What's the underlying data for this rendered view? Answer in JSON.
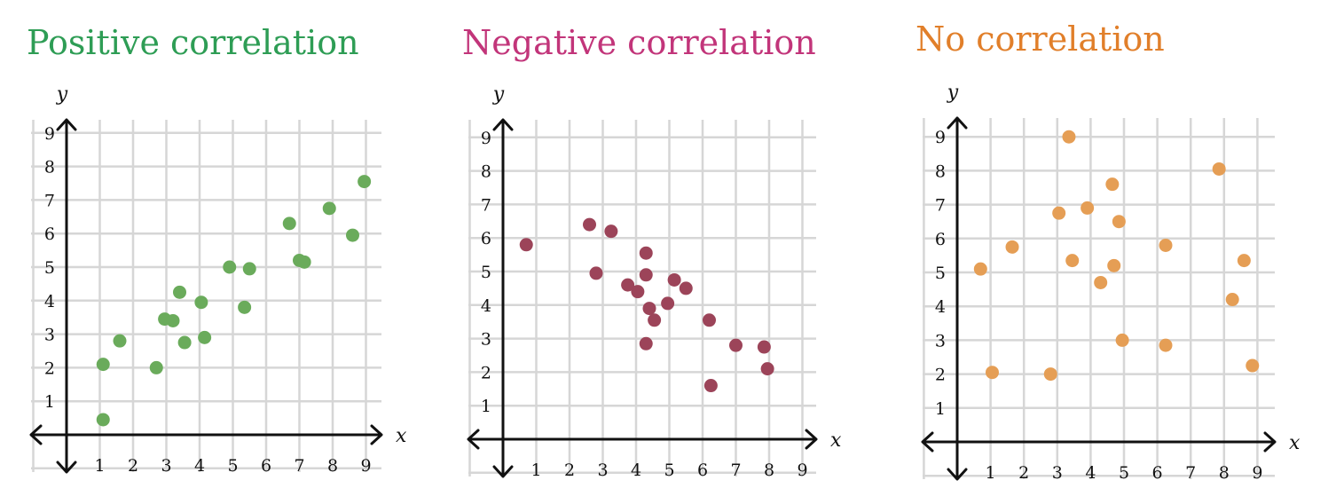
{
  "chart_data": [
    {
      "type": "scatter",
      "title": "Positive correlation",
      "title_color": "#2e9d55",
      "point_color": "#6aab5b",
      "xlabel": "x",
      "ylabel": "y",
      "xlim": [
        0,
        9
      ],
      "ylim": [
        0,
        9
      ],
      "xticks": [
        "1",
        "2",
        "3",
        "4",
        "5",
        "6",
        "7",
        "8",
        "9"
      ],
      "yticks": [
        "1",
        "2",
        "3",
        "4",
        "5",
        "6",
        "7",
        "8",
        "9"
      ],
      "grid": true,
      "points": [
        {
          "x": 1.1,
          "y": 0.45
        },
        {
          "x": 1.1,
          "y": 2.1
        },
        {
          "x": 1.6,
          "y": 2.8
        },
        {
          "x": 2.7,
          "y": 2.0
        },
        {
          "x": 2.95,
          "y": 3.45
        },
        {
          "x": 3.2,
          "y": 3.4
        },
        {
          "x": 3.4,
          "y": 4.25
        },
        {
          "x": 3.55,
          "y": 2.75
        },
        {
          "x": 4.05,
          "y": 3.95
        },
        {
          "x": 4.15,
          "y": 2.9
        },
        {
          "x": 4.9,
          "y": 5.0
        },
        {
          "x": 5.35,
          "y": 3.8
        },
        {
          "x": 5.5,
          "y": 4.95
        },
        {
          "x": 6.7,
          "y": 6.3
        },
        {
          "x": 7.0,
          "y": 5.2
        },
        {
          "x": 7.15,
          "y": 5.15
        },
        {
          "x": 7.9,
          "y": 6.75
        },
        {
          "x": 8.6,
          "y": 5.95
        },
        {
          "x": 8.95,
          "y": 7.55
        }
      ]
    },
    {
      "type": "scatter",
      "title": "Negative correlation",
      "title_color": "#c2357a",
      "point_color": "#9c4459",
      "xlabel": "x",
      "ylabel": "y",
      "xlim": [
        0,
        9
      ],
      "ylim": [
        0,
        9
      ],
      "xticks": [
        "1",
        "2",
        "3",
        "4",
        "5",
        "6",
        "7",
        "8",
        "9"
      ],
      "yticks": [
        "1",
        "2",
        "3",
        "4",
        "5",
        "6",
        "7",
        "8",
        "9"
      ],
      "grid": true,
      "points": [
        {
          "x": 0.7,
          "y": 5.8
        },
        {
          "x": 2.6,
          "y": 6.4
        },
        {
          "x": 2.8,
          "y": 4.95
        },
        {
          "x": 3.25,
          "y": 6.2
        },
        {
          "x": 3.75,
          "y": 4.6
        },
        {
          "x": 4.05,
          "y": 4.4
        },
        {
          "x": 4.3,
          "y": 5.55
        },
        {
          "x": 4.3,
          "y": 4.9
        },
        {
          "x": 4.3,
          "y": 2.85
        },
        {
          "x": 4.4,
          "y": 3.9
        },
        {
          "x": 4.55,
          "y": 3.55
        },
        {
          "x": 4.95,
          "y": 4.05
        },
        {
          "x": 5.15,
          "y": 4.75
        },
        {
          "x": 5.5,
          "y": 4.5
        },
        {
          "x": 6.2,
          "y": 3.55
        },
        {
          "x": 6.25,
          "y": 1.6
        },
        {
          "x": 7.0,
          "y": 2.8
        },
        {
          "x": 7.85,
          "y": 2.75
        },
        {
          "x": 7.95,
          "y": 2.1
        }
      ]
    },
    {
      "type": "scatter",
      "title": "No correlation",
      "title_color": "#e17f2a",
      "point_color": "#e59e55",
      "xlabel": "x",
      "ylabel": "y",
      "xlim": [
        0,
        9
      ],
      "ylim": [
        0,
        9
      ],
      "xticks": [
        "1",
        "2",
        "3",
        "4",
        "5",
        "6",
        "7",
        "8",
        "9"
      ],
      "yticks": [
        "1",
        "2",
        "3",
        "4",
        "5",
        "6",
        "7",
        "8",
        "9"
      ],
      "grid": true,
      "points": [
        {
          "x": 0.7,
          "y": 5.1
        },
        {
          "x": 1.05,
          "y": 2.05
        },
        {
          "x": 1.65,
          "y": 5.75
        },
        {
          "x": 2.8,
          "y": 2.0
        },
        {
          "x": 3.05,
          "y": 6.75
        },
        {
          "x": 3.35,
          "y": 9.0
        },
        {
          "x": 3.45,
          "y": 5.35
        },
        {
          "x": 3.9,
          "y": 6.9
        },
        {
          "x": 4.3,
          "y": 4.7
        },
        {
          "x": 4.65,
          "y": 7.6
        },
        {
          "x": 4.7,
          "y": 5.2
        },
        {
          "x": 4.85,
          "y": 6.5
        },
        {
          "x": 4.95,
          "y": 3.0
        },
        {
          "x": 6.25,
          "y": 5.8
        },
        {
          "x": 6.25,
          "y": 2.85
        },
        {
          "x": 7.85,
          "y": 8.05
        },
        {
          "x": 8.25,
          "y": 4.2
        },
        {
          "x": 8.6,
          "y": 5.35
        },
        {
          "x": 8.85,
          "y": 2.25
        }
      ]
    }
  ]
}
